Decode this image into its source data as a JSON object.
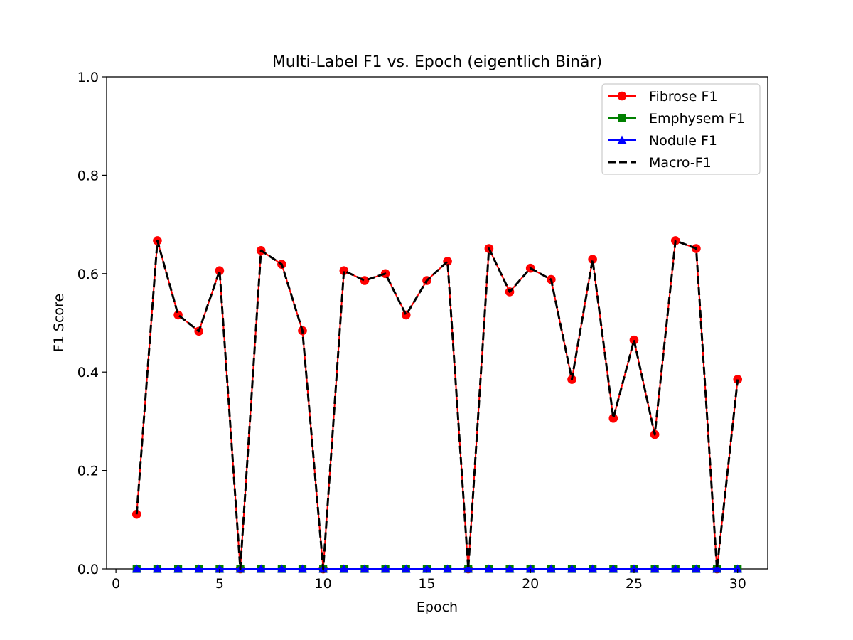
{
  "chart_data": {
    "type": "line",
    "title": "Multi-Label F1 vs. Epoch (eigentlich Binär)",
    "xlabel": "Epoch",
    "ylabel": "F1 Score",
    "xlim": [
      -0.45,
      31.45
    ],
    "ylim": [
      0,
      1.0
    ],
    "xticks": [
      0,
      5,
      10,
      15,
      20,
      25,
      30
    ],
    "xtick_labels": [
      "0",
      "5",
      "10",
      "15",
      "20",
      "25",
      "30"
    ],
    "yticks": [
      0,
      0.2,
      0.4,
      0.6,
      0.8,
      1.0
    ],
    "ytick_labels": [
      "0.0",
      "0.2",
      "0.4",
      "0.6",
      "0.8",
      "1.0"
    ],
    "grid": false,
    "legend_position": "top-right",
    "x": [
      1,
      2,
      3,
      4,
      5,
      6,
      7,
      8,
      9,
      10,
      11,
      12,
      13,
      14,
      15,
      16,
      17,
      18,
      19,
      20,
      21,
      22,
      23,
      24,
      25,
      26,
      27,
      28,
      29,
      30
    ],
    "series": [
      {
        "name": "Fibrose F1",
        "color": "#ff0000",
        "marker": "circle",
        "linestyle": "solid",
        "values": [
          0.111,
          0.667,
          0.516,
          0.483,
          0.606,
          0.0,
          0.647,
          0.619,
          0.484,
          0.0,
          0.606,
          0.586,
          0.6,
          0.516,
          0.586,
          0.625,
          0.0,
          0.651,
          0.563,
          0.611,
          0.588,
          0.385,
          0.629,
          0.306,
          0.465,
          0.273,
          0.667,
          0.651,
          0.0,
          0.385
        ]
      },
      {
        "name": "Emphysem F1",
        "color": "#008000",
        "marker": "square",
        "linestyle": "solid",
        "values": [
          0,
          0,
          0,
          0,
          0,
          0,
          0,
          0,
          0,
          0,
          0,
          0,
          0,
          0,
          0,
          0,
          0,
          0,
          0,
          0,
          0,
          0,
          0,
          0,
          0,
          0,
          0,
          0,
          0,
          0
        ]
      },
      {
        "name": "Nodule F1",
        "color": "#0000ff",
        "marker": "triangle",
        "linestyle": "solid",
        "values": [
          0,
          0,
          0,
          0,
          0,
          0,
          0,
          0,
          0,
          0,
          0,
          0,
          0,
          0,
          0,
          0,
          0,
          0,
          0,
          0,
          0,
          0,
          0,
          0,
          0,
          0,
          0,
          0,
          0,
          0
        ]
      },
      {
        "name": "Macro-F1",
        "color": "#000000",
        "marker": "none",
        "linestyle": "dashed",
        "values": [
          0.111,
          0.667,
          0.516,
          0.483,
          0.606,
          0.0,
          0.647,
          0.619,
          0.484,
          0.0,
          0.606,
          0.586,
          0.6,
          0.516,
          0.586,
          0.625,
          0.0,
          0.651,
          0.563,
          0.611,
          0.588,
          0.385,
          0.629,
          0.306,
          0.465,
          0.273,
          0.667,
          0.651,
          0.0,
          0.385
        ]
      }
    ]
  }
}
